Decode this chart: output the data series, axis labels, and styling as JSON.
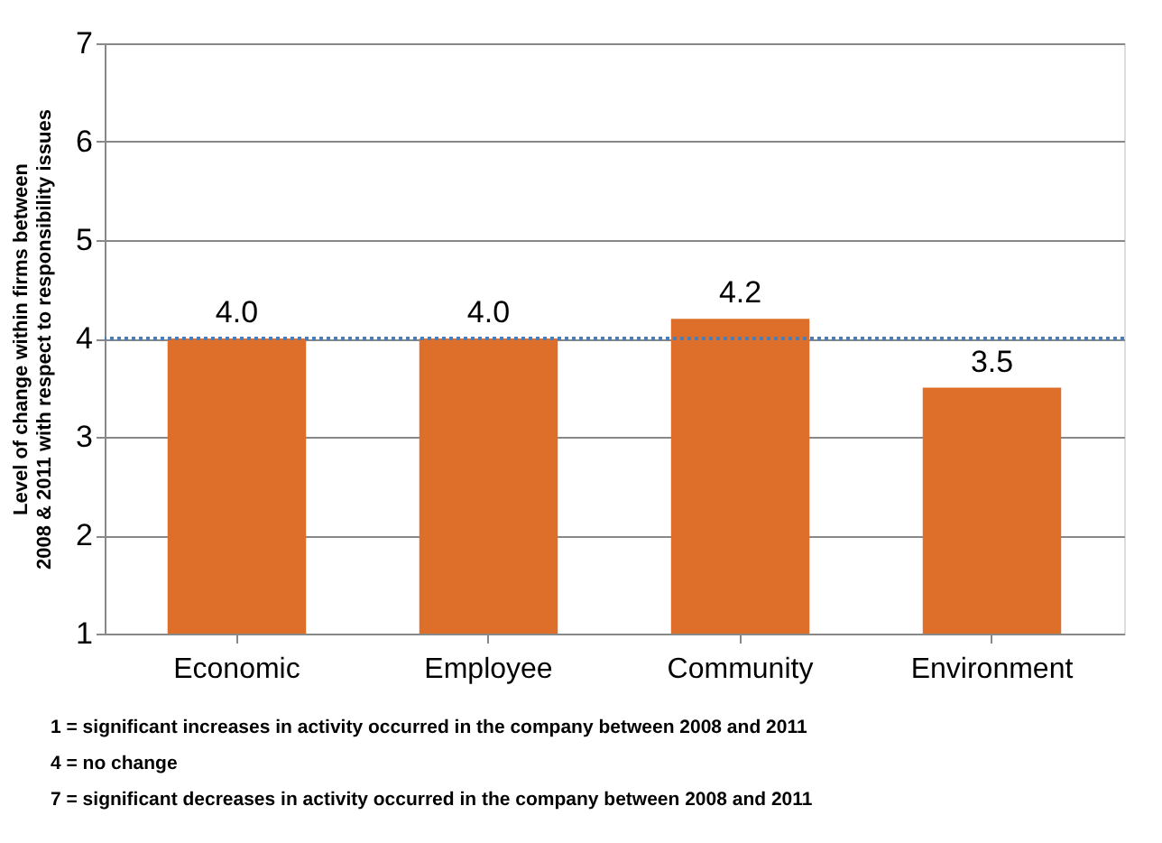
{
  "chart_data": {
    "type": "bar",
    "ylabel": "Level of change within firms between\n2008 & 2011 with respect to responsibility issues",
    "categories": [
      "Economic",
      "Employee",
      "Community",
      "Environment"
    ],
    "values": [
      4.0,
      4.0,
      4.2,
      3.5
    ],
    "color": "#dd6f2a",
    "value_labels": [
      "4.0",
      "4.0",
      "4.2",
      "3.5"
    ],
    "ylim": [
      1,
      7
    ],
    "yticks": [
      1,
      2,
      3,
      4,
      5,
      6,
      7
    ],
    "grid": "y",
    "ref_lines": [
      {
        "axis": "y",
        "value": 4,
        "color": "#4a7ebb",
        "line_style": "dotted"
      }
    ],
    "annotations": [
      "1 = significant increases in activity occurred in the company between 2008 and 2011",
      "4 = no change",
      "7 = significant decreases in activity occurred in the company between 2008 and 2011"
    ]
  }
}
